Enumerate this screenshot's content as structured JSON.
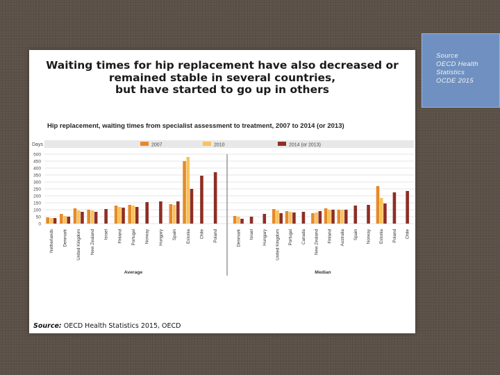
{
  "slide": {
    "headline": [
      "Waiting times for hip replacement have also decreased or",
      "remained stable in several countries,",
      "but have started to go up in others"
    ],
    "source_box": [
      "Source",
      "OECD Health",
      "Statistics",
      "OCDE 2015"
    ],
    "footer_label": "Source:",
    "footer_text": " OECD Health Statistics 2015, OECD"
  },
  "colors": {
    "s2007": "#e58a2a",
    "s2010": "#f9c25a",
    "s2014": "#8e2e26",
    "band": "#e8e8e8",
    "grid": "#dcdcdc",
    "separator": "#666666"
  },
  "chart_data": {
    "type": "bar",
    "title": "Hip replacement, waiting times from specialist assessment to treatment, 2007 to 2014 (or 2013)",
    "ylabel": "Days",
    "ylim": [
      0,
      500
    ],
    "yticks": [
      0,
      50,
      100,
      150,
      200,
      250,
      300,
      350,
      400,
      450,
      500
    ],
    "grid": true,
    "legend_placement": "top",
    "legend": [
      "2007",
      "2010",
      "2014 (or 2013)"
    ],
    "groups": [
      {
        "name": "Average",
        "categories": [
          "Netherlands",
          "Denmark",
          "United Kingdom",
          "New Zealand",
          "Israel",
          "Finland",
          "Portugal",
          "Norway",
          "Hungary",
          "Spain",
          "Estonia",
          "Chile",
          "Poland"
        ],
        "series": [
          {
            "name": "2007",
            "values": [
              45,
              70,
              110,
              100,
              null,
              130,
              135,
              null,
              null,
              140,
              450,
              null,
              null
            ]
          },
          {
            "name": "2010",
            "values": [
              40,
              55,
              95,
              95,
              null,
              120,
              130,
              null,
              null,
              135,
              480,
              null,
              null
            ]
          },
          {
            "name": "2014 (or 2013)",
            "values": [
              40,
              50,
              85,
              85,
              105,
              115,
              120,
              155,
              160,
              160,
              250,
              345,
              370
            ]
          }
        ]
      },
      {
        "name": "Median",
        "categories": [
          "Denmark",
          "Israel",
          "Hungary",
          "United Kingdom",
          "Portugal",
          "Canada",
          "New Zealand",
          "Finland",
          "Australia",
          "Spain",
          "Norway",
          "Estonia",
          "Poland",
          "Chile"
        ],
        "series": [
          {
            "name": "2007",
            "values": [
              55,
              null,
              null,
              105,
              90,
              null,
              75,
              110,
              100,
              null,
              null,
              270,
              null,
              null
            ]
          },
          {
            "name": "2010",
            "values": [
              50,
              null,
              null,
              95,
              85,
              null,
              80,
              100,
              100,
              null,
              null,
              185,
              null,
              null
            ]
          },
          {
            "name": "2014 (or 2013)",
            "values": [
              35,
              50,
              70,
              75,
              80,
              85,
              90,
              100,
              100,
              130,
              135,
              145,
              225,
              235
            ]
          }
        ]
      }
    ]
  }
}
